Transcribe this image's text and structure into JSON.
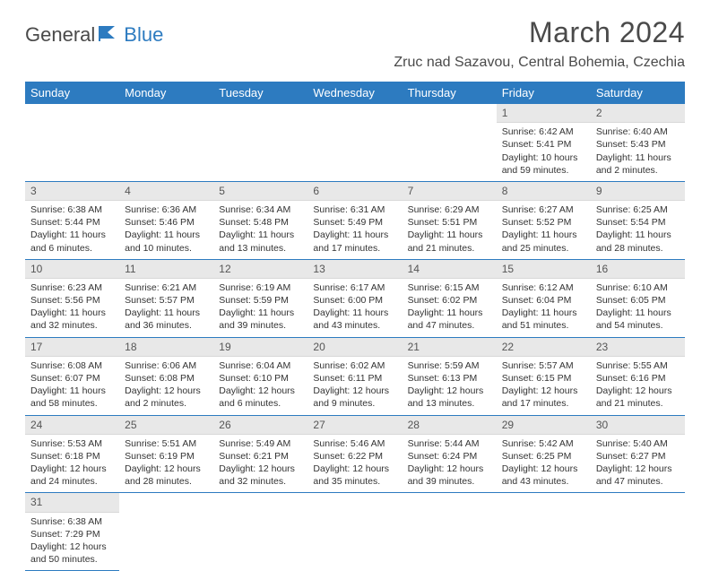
{
  "logo": {
    "part1": "General",
    "part2": "Blue"
  },
  "title": "March 2024",
  "location": "Zruc nad Sazavou, Central Bohemia, Czechia",
  "colors": {
    "header_bg": "#2d7bc0",
    "header_text": "#ffffff",
    "daynum_bg": "#e8e8e8",
    "border": "#2d7bc0",
    "text": "#333333",
    "logo_gray": "#4a4a4a",
    "logo_blue": "#2d7bc0"
  },
  "weekdays": [
    "Sunday",
    "Monday",
    "Tuesday",
    "Wednesday",
    "Thursday",
    "Friday",
    "Saturday"
  ],
  "weeks": [
    [
      null,
      null,
      null,
      null,
      null,
      {
        "n": "1",
        "sr": "Sunrise: 6:42 AM",
        "ss": "Sunset: 5:41 PM",
        "dl": "Daylight: 10 hours and 59 minutes."
      },
      {
        "n": "2",
        "sr": "Sunrise: 6:40 AM",
        "ss": "Sunset: 5:43 PM",
        "dl": "Daylight: 11 hours and 2 minutes."
      }
    ],
    [
      {
        "n": "3",
        "sr": "Sunrise: 6:38 AM",
        "ss": "Sunset: 5:44 PM",
        "dl": "Daylight: 11 hours and 6 minutes."
      },
      {
        "n": "4",
        "sr": "Sunrise: 6:36 AM",
        "ss": "Sunset: 5:46 PM",
        "dl": "Daylight: 11 hours and 10 minutes."
      },
      {
        "n": "5",
        "sr": "Sunrise: 6:34 AM",
        "ss": "Sunset: 5:48 PM",
        "dl": "Daylight: 11 hours and 13 minutes."
      },
      {
        "n": "6",
        "sr": "Sunrise: 6:31 AM",
        "ss": "Sunset: 5:49 PM",
        "dl": "Daylight: 11 hours and 17 minutes."
      },
      {
        "n": "7",
        "sr": "Sunrise: 6:29 AM",
        "ss": "Sunset: 5:51 PM",
        "dl": "Daylight: 11 hours and 21 minutes."
      },
      {
        "n": "8",
        "sr": "Sunrise: 6:27 AM",
        "ss": "Sunset: 5:52 PM",
        "dl": "Daylight: 11 hours and 25 minutes."
      },
      {
        "n": "9",
        "sr": "Sunrise: 6:25 AM",
        "ss": "Sunset: 5:54 PM",
        "dl": "Daylight: 11 hours and 28 minutes."
      }
    ],
    [
      {
        "n": "10",
        "sr": "Sunrise: 6:23 AM",
        "ss": "Sunset: 5:56 PM",
        "dl": "Daylight: 11 hours and 32 minutes."
      },
      {
        "n": "11",
        "sr": "Sunrise: 6:21 AM",
        "ss": "Sunset: 5:57 PM",
        "dl": "Daylight: 11 hours and 36 minutes."
      },
      {
        "n": "12",
        "sr": "Sunrise: 6:19 AM",
        "ss": "Sunset: 5:59 PM",
        "dl": "Daylight: 11 hours and 39 minutes."
      },
      {
        "n": "13",
        "sr": "Sunrise: 6:17 AM",
        "ss": "Sunset: 6:00 PM",
        "dl": "Daylight: 11 hours and 43 minutes."
      },
      {
        "n": "14",
        "sr": "Sunrise: 6:15 AM",
        "ss": "Sunset: 6:02 PM",
        "dl": "Daylight: 11 hours and 47 minutes."
      },
      {
        "n": "15",
        "sr": "Sunrise: 6:12 AM",
        "ss": "Sunset: 6:04 PM",
        "dl": "Daylight: 11 hours and 51 minutes."
      },
      {
        "n": "16",
        "sr": "Sunrise: 6:10 AM",
        "ss": "Sunset: 6:05 PM",
        "dl": "Daylight: 11 hours and 54 minutes."
      }
    ],
    [
      {
        "n": "17",
        "sr": "Sunrise: 6:08 AM",
        "ss": "Sunset: 6:07 PM",
        "dl": "Daylight: 11 hours and 58 minutes."
      },
      {
        "n": "18",
        "sr": "Sunrise: 6:06 AM",
        "ss": "Sunset: 6:08 PM",
        "dl": "Daylight: 12 hours and 2 minutes."
      },
      {
        "n": "19",
        "sr": "Sunrise: 6:04 AM",
        "ss": "Sunset: 6:10 PM",
        "dl": "Daylight: 12 hours and 6 minutes."
      },
      {
        "n": "20",
        "sr": "Sunrise: 6:02 AM",
        "ss": "Sunset: 6:11 PM",
        "dl": "Daylight: 12 hours and 9 minutes."
      },
      {
        "n": "21",
        "sr": "Sunrise: 5:59 AM",
        "ss": "Sunset: 6:13 PM",
        "dl": "Daylight: 12 hours and 13 minutes."
      },
      {
        "n": "22",
        "sr": "Sunrise: 5:57 AM",
        "ss": "Sunset: 6:15 PM",
        "dl": "Daylight: 12 hours and 17 minutes."
      },
      {
        "n": "23",
        "sr": "Sunrise: 5:55 AM",
        "ss": "Sunset: 6:16 PM",
        "dl": "Daylight: 12 hours and 21 minutes."
      }
    ],
    [
      {
        "n": "24",
        "sr": "Sunrise: 5:53 AM",
        "ss": "Sunset: 6:18 PM",
        "dl": "Daylight: 12 hours and 24 minutes."
      },
      {
        "n": "25",
        "sr": "Sunrise: 5:51 AM",
        "ss": "Sunset: 6:19 PM",
        "dl": "Daylight: 12 hours and 28 minutes."
      },
      {
        "n": "26",
        "sr": "Sunrise: 5:49 AM",
        "ss": "Sunset: 6:21 PM",
        "dl": "Daylight: 12 hours and 32 minutes."
      },
      {
        "n": "27",
        "sr": "Sunrise: 5:46 AM",
        "ss": "Sunset: 6:22 PM",
        "dl": "Daylight: 12 hours and 35 minutes."
      },
      {
        "n": "28",
        "sr": "Sunrise: 5:44 AM",
        "ss": "Sunset: 6:24 PM",
        "dl": "Daylight: 12 hours and 39 minutes."
      },
      {
        "n": "29",
        "sr": "Sunrise: 5:42 AM",
        "ss": "Sunset: 6:25 PM",
        "dl": "Daylight: 12 hours and 43 minutes."
      },
      {
        "n": "30",
        "sr": "Sunrise: 5:40 AM",
        "ss": "Sunset: 6:27 PM",
        "dl": "Daylight: 12 hours and 47 minutes."
      }
    ],
    [
      {
        "n": "31",
        "sr": "Sunrise: 6:38 AM",
        "ss": "Sunset: 7:29 PM",
        "dl": "Daylight: 12 hours and 50 minutes."
      },
      null,
      null,
      null,
      null,
      null,
      null
    ]
  ]
}
